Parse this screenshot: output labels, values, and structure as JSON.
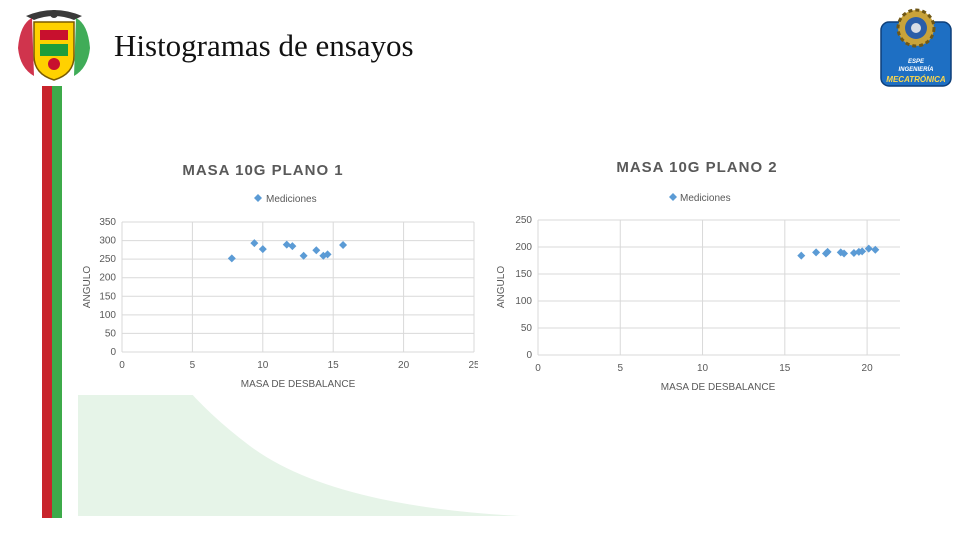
{
  "slide": {
    "title": "Histogramas de ensayos"
  },
  "logos": {
    "left": {
      "name": "escudo",
      "colors": [
        "#c8102e",
        "#ffd100",
        "#1f9d3b"
      ]
    },
    "right": {
      "line1": "ESPE",
      "line2": "INGENIERÍA",
      "line3": "MECATRÓNICA",
      "bg": "#1e6fc3"
    }
  },
  "colors": {
    "red_bar": "#c8242b",
    "green_bar": "#3daa4a",
    "pale_green": "#e6f4e8",
    "marker": "#5b9bd5"
  },
  "chart_data": [
    {
      "type": "scatter",
      "title": "MASA 10G PLANO 1",
      "xlabel": "MASA DE DESBALANCE",
      "ylabel": "ANGULO",
      "xlim": [
        0,
        25
      ],
      "ylim": [
        0,
        350
      ],
      "xticks": [
        "0",
        "5",
        "10",
        "15",
        "20",
        "25"
      ],
      "yticks": [
        "0",
        "50",
        "100",
        "150",
        "200",
        "250",
        "300",
        "350"
      ],
      "grid": true,
      "legend": "top",
      "series": [
        {
          "name": "Mediciones",
          "points": [
            [
              7.8,
              252
            ],
            [
              9.4,
              293
            ],
            [
              10.0,
              277
            ],
            [
              11.7,
              289
            ],
            [
              12.1,
              285
            ],
            [
              12.9,
              259
            ],
            [
              13.8,
              274
            ],
            [
              14.3,
              259
            ],
            [
              14.6,
              263
            ],
            [
              15.7,
              288
            ]
          ]
        }
      ]
    },
    {
      "type": "scatter",
      "title": "MASA 10G PLANO 2",
      "xlabel": "MASA DE DESBALANCE",
      "ylabel": "ANGULO",
      "xlim": [
        0,
        22
      ],
      "ylim": [
        0,
        250
      ],
      "xticks": [
        "0",
        "5",
        "10",
        "15",
        "20"
      ],
      "yticks": [
        "0",
        "50",
        "100",
        "150",
        "200",
        "250"
      ],
      "grid": true,
      "legend": "top",
      "series": [
        {
          "name": "Mediciones",
          "points": [
            [
              16.0,
              184
            ],
            [
              16.9,
              190
            ],
            [
              17.5,
              188
            ],
            [
              17.6,
              191
            ],
            [
              18.4,
              190
            ],
            [
              18.6,
              188
            ],
            [
              19.2,
              189
            ],
            [
              19.5,
              191
            ],
            [
              19.7,
              192
            ],
            [
              20.1,
              197
            ],
            [
              20.5,
              195
            ]
          ]
        }
      ]
    }
  ]
}
